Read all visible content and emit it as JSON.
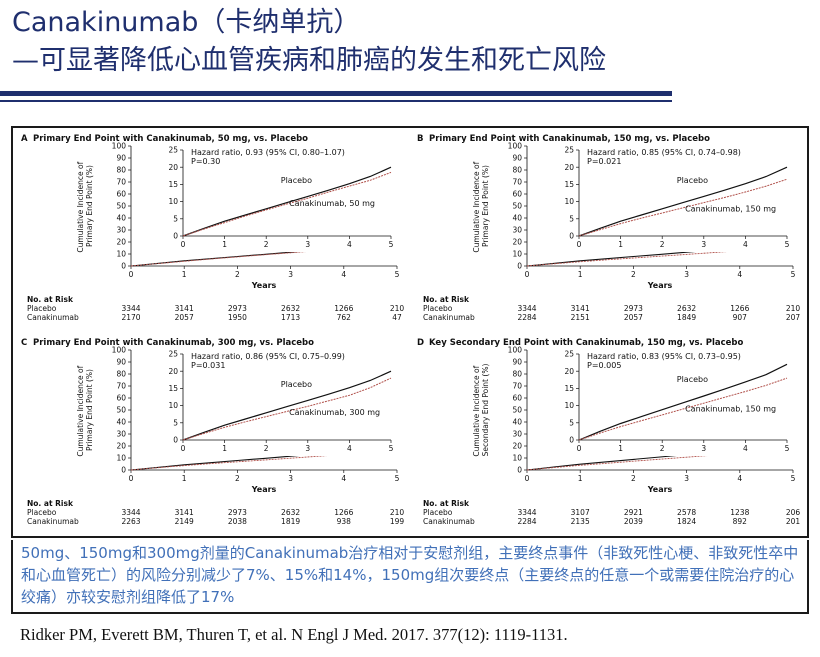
{
  "slide": {
    "title_line1": "Canakinumab（卡纳单抗）",
    "title_line2": "—可显著降低心血管疾病和肺癌的发生和死亡风险",
    "summary": "50mg、150mg和300mg剂量的Canakinumab治疗相对于安慰剂组，主要终点事件（非致死性心梗、非致死性卒中和心血管死亡）的风险分别减少了7%、15%和14%，150mg组次要终点（主要终点的任意一个或需要住院治疗的心绞痛）亦较安慰剂组降低了17%",
    "citation": "Ridker PM, Everett BM, Thuren T, et al. N Engl J Med. 2017. 377(12): 1119-1131."
  },
  "colors": {
    "title": "#1f2f6e",
    "summary_text": "#4170b8",
    "placebo": "#111111",
    "canakinumab": "#b0504a"
  },
  "chart_data": [
    {
      "type": "line",
      "panel_letter": "A",
      "title": "Primary End Point with Canakinumab, 50 mg, vs. Placebo",
      "xlabel": "Years",
      "ylabel": "Cumulative Incidence of Primary End Point (%)",
      "xlim": [
        0,
        5
      ],
      "ylim": [
        0,
        100
      ],
      "xticks": [
        "0",
        "1",
        "2",
        "3",
        "4",
        "5"
      ],
      "yticks": [
        "0",
        "10",
        "20",
        "30",
        "40",
        "50",
        "60",
        "70",
        "80",
        "90",
        "100"
      ],
      "inset": {
        "xlim": [
          0,
          5
        ],
        "ylim": [
          0,
          25
        ],
        "xticks": [
          "0",
          "1",
          "2",
          "3",
          "4",
          "5"
        ],
        "yticks": [
          "0",
          "5",
          "10",
          "15",
          "20",
          "25"
        ]
      },
      "hazard_ratio": "Hazard ratio, 0.93 (95% CI, 0.80–1.07)",
      "p_value": "P=0.30",
      "series": [
        {
          "name": "Placebo",
          "x": [
            0,
            0.5,
            1,
            1.5,
            2,
            2.5,
            3,
            3.5,
            4,
            4.5,
            5
          ],
          "y": [
            0,
            2.2,
            4.3,
            6.1,
            7.9,
            9.7,
            11.5,
            13.3,
            15.2,
            17.3,
            20.0
          ]
        },
        {
          "name": "Canakinumab, 50 mg",
          "x": [
            0,
            0.5,
            1,
            1.5,
            2,
            2.5,
            3,
            3.5,
            4,
            4.5,
            5
          ],
          "y": [
            0,
            2.0,
            3.9,
            5.8,
            7.6,
            9.3,
            11.0,
            12.8,
            14.5,
            16.2,
            18.5
          ]
        }
      ],
      "risk_table": {
        "header": "No. at Risk",
        "rows": [
          {
            "label": "Placebo",
            "values": [
              "3344",
              "3141",
              "2973",
              "2632",
              "1266",
              "210"
            ]
          },
          {
            "label": "Canakinumab",
            "values": [
              "2170",
              "2057",
              "1950",
              "1713",
              "762",
              "47"
            ]
          }
        ]
      }
    },
    {
      "type": "line",
      "panel_letter": "B",
      "title": "Primary End Point with Canakinumab, 150 mg, vs. Placebo",
      "xlabel": "Years",
      "ylabel": "Cumulative Incidence of Primary End Point (%)",
      "xlim": [
        0,
        5
      ],
      "ylim": [
        0,
        100
      ],
      "xticks": [
        "0",
        "1",
        "2",
        "3",
        "4",
        "5"
      ],
      "yticks": [
        "0",
        "10",
        "20",
        "30",
        "40",
        "50",
        "60",
        "70",
        "80",
        "90",
        "100"
      ],
      "inset": {
        "xlim": [
          0,
          5
        ],
        "ylim": [
          0,
          25
        ],
        "xticks": [
          "0",
          "1",
          "2",
          "3",
          "4",
          "5"
        ],
        "yticks": [
          "0",
          "5",
          "10",
          "15",
          "20",
          "25"
        ]
      },
      "hazard_ratio": "Hazard ratio, 0.85 (95% CI, 0.74–0.98)",
      "p_value": "P=0.021",
      "series": [
        {
          "name": "Placebo",
          "x": [
            0,
            0.5,
            1,
            1.5,
            2,
            2.5,
            3,
            3.5,
            4,
            4.5,
            5
          ],
          "y": [
            0,
            2.2,
            4.3,
            6.1,
            7.9,
            9.7,
            11.5,
            13.3,
            15.2,
            17.3,
            20.0
          ]
        },
        {
          "name": "Canakinumab, 150 mg",
          "x": [
            0,
            0.5,
            1,
            1.5,
            2,
            2.5,
            3,
            3.5,
            4,
            4.5,
            5
          ],
          "y": [
            0,
            1.8,
            3.6,
            5.2,
            6.7,
            8.2,
            9.7,
            11.2,
            12.8,
            14.5,
            16.5
          ]
        }
      ],
      "risk_table": {
        "header": "No. at Risk",
        "rows": [
          {
            "label": "Placebo",
            "values": [
              "3344",
              "3141",
              "2973",
              "2632",
              "1266",
              "210"
            ]
          },
          {
            "label": "Canakinumab",
            "values": [
              "2284",
              "2151",
              "2057",
              "1849",
              "907",
              "207"
            ]
          }
        ]
      }
    },
    {
      "type": "line",
      "panel_letter": "C",
      "title": "Primary End Point with Canakinumab, 300 mg, vs. Placebo",
      "xlabel": "Years",
      "ylabel": "Cumulative Incidence of Primary End Point (%)",
      "xlim": [
        0,
        5
      ],
      "ylim": [
        0,
        100
      ],
      "xticks": [
        "0",
        "1",
        "2",
        "3",
        "4",
        "5"
      ],
      "yticks": [
        "0",
        "10",
        "20",
        "30",
        "40",
        "50",
        "60",
        "70",
        "80",
        "90",
        "100"
      ],
      "inset": {
        "xlim": [
          0,
          5
        ],
        "ylim": [
          0,
          25
        ],
        "xticks": [
          "0",
          "1",
          "2",
          "3",
          "4",
          "5"
        ],
        "yticks": [
          "0",
          "5",
          "10",
          "15",
          "20",
          "25"
        ]
      },
      "hazard_ratio": "Hazard ratio, 0.86 (95% CI, 0.75–0.99)",
      "p_value": "P=0.031",
      "series": [
        {
          "name": "Placebo",
          "x": [
            0,
            0.5,
            1,
            1.5,
            2,
            2.5,
            3,
            3.5,
            4,
            4.5,
            5
          ],
          "y": [
            0,
            2.2,
            4.3,
            6.1,
            7.9,
            9.7,
            11.5,
            13.3,
            15.2,
            17.3,
            20.0
          ]
        },
        {
          "name": "Canakinumab, 300 mg",
          "x": [
            0,
            0.5,
            1,
            1.5,
            2,
            2.5,
            3,
            3.5,
            4,
            4.5,
            5
          ],
          "y": [
            0,
            1.9,
            3.7,
            5.3,
            6.8,
            8.3,
            9.8,
            11.4,
            13.0,
            15.2,
            18.0
          ]
        }
      ],
      "risk_table": {
        "header": "No. at Risk",
        "rows": [
          {
            "label": "Placebo",
            "values": [
              "3344",
              "3141",
              "2973",
              "2632",
              "1266",
              "210"
            ]
          },
          {
            "label": "Canakinumab",
            "values": [
              "2263",
              "2149",
              "2038",
              "1819",
              "938",
              "199"
            ]
          }
        ]
      }
    },
    {
      "type": "line",
      "panel_letter": "D",
      "title": "Key Secondary End Point with Canakinumab, 150 mg, vs. Placebo",
      "xlabel": "Years",
      "ylabel": "Cumulative Incidence of Secondary End Point (%)",
      "xlim": [
        0,
        5
      ],
      "ylim": [
        0,
        100
      ],
      "xticks": [
        "0",
        "1",
        "2",
        "3",
        "4",
        "5"
      ],
      "yticks": [
        "0",
        "10",
        "20",
        "30",
        "40",
        "50",
        "60",
        "70",
        "80",
        "90",
        "100"
      ],
      "inset": {
        "xlim": [
          0,
          5
        ],
        "ylim": [
          0,
          25
        ],
        "xticks": [
          "0",
          "1",
          "2",
          "3",
          "4",
          "5"
        ],
        "yticks": [
          "0",
          "5",
          "10",
          "15",
          "20",
          "25"
        ]
      },
      "hazard_ratio": "Hazard ratio, 0.83 (95% CI, 0.73–0.95)",
      "p_value": "P=0.005",
      "series": [
        {
          "name": "Placebo",
          "x": [
            0,
            0.5,
            1,
            1.5,
            2,
            2.5,
            3,
            3.5,
            4,
            4.5,
            5
          ],
          "y": [
            0,
            2.5,
            4.8,
            6.8,
            8.8,
            10.8,
            12.8,
            14.8,
            16.9,
            19.0,
            22.0
          ]
        },
        {
          "name": "Canakinumab, 150 mg",
          "x": [
            0,
            0.5,
            1,
            1.5,
            2,
            2.5,
            3,
            3.5,
            4,
            4.5,
            5
          ],
          "y": [
            0,
            2.0,
            3.9,
            5.6,
            7.3,
            9.0,
            10.7,
            12.4,
            14.1,
            15.9,
            18.0
          ]
        }
      ],
      "risk_table": {
        "header": "No. at Risk",
        "rows": [
          {
            "label": "Placebo",
            "values": [
              "3344",
              "3107",
              "2921",
              "2578",
              "1238",
              "206"
            ]
          },
          {
            "label": "Canakinumab",
            "values": [
              "2284",
              "2135",
              "2039",
              "1824",
              "892",
              "201"
            ]
          }
        ]
      }
    }
  ]
}
